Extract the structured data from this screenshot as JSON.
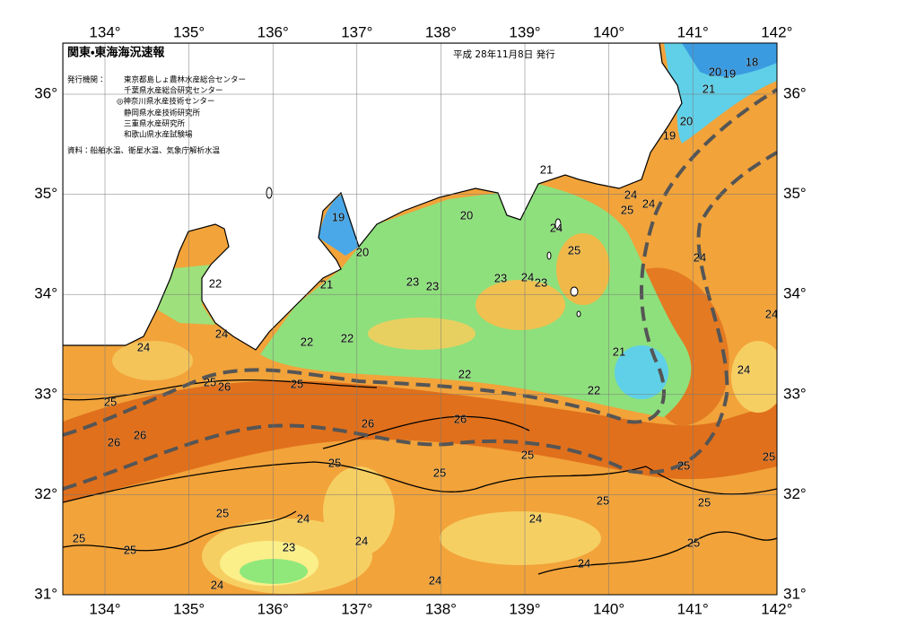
{
  "header": {
    "title": "関東・東海海況速報",
    "date": "平成 28年11月8日 発行"
  },
  "issuers": {
    "label": "発行機関：",
    "names": [
      "東京都島しょ農林水産総合センター",
      "千葉県水産総合研究センター",
      "◎神奈川県水産技術センター",
      "静岡県水産技術研究所",
      "三重県水産研究所",
      "和歌山県水産試験場"
    ]
  },
  "source": "資料：船舶水温、衛星水温、気象庁解析水温",
  "axes": {
    "lon": [
      {
        "value": 134,
        "label": "134°"
      },
      {
        "value": 135,
        "label": "135°"
      },
      {
        "value": 136,
        "label": "136°"
      },
      {
        "value": 137,
        "label": "137°"
      },
      {
        "value": 138,
        "label": "138°"
      },
      {
        "value": 139,
        "label": "139°"
      },
      {
        "value": 140,
        "label": "140°"
      },
      {
        "value": 141,
        "label": "141°"
      },
      {
        "value": 142,
        "label": "142°"
      }
    ],
    "lat": [
      {
        "value": 36,
        "label": "36°"
      },
      {
        "value": 35,
        "label": "35°"
      },
      {
        "value": 34,
        "label": "34°"
      },
      {
        "value": 33,
        "label": "33°"
      },
      {
        "value": 32,
        "label": "32°"
      },
      {
        "value": 31,
        "label": "31°"
      }
    ]
  },
  "contour_labels": [
    22,
    24,
    24,
    21,
    22,
    22,
    23,
    23,
    23,
    24,
    23,
    19,
    20,
    20,
    21,
    24,
    25,
    24,
    25,
    24,
    21,
    22,
    22,
    25,
    26,
    25,
    25,
    26,
    26,
    26,
    26,
    25,
    25,
    25,
    24,
    24,
    24,
    25,
    25,
    25,
    25,
    25,
    24,
    24,
    24,
    25,
    25,
    23,
    25,
    24,
    24,
    24,
    20,
    19,
    18,
    21,
    20,
    19
  ]
}
